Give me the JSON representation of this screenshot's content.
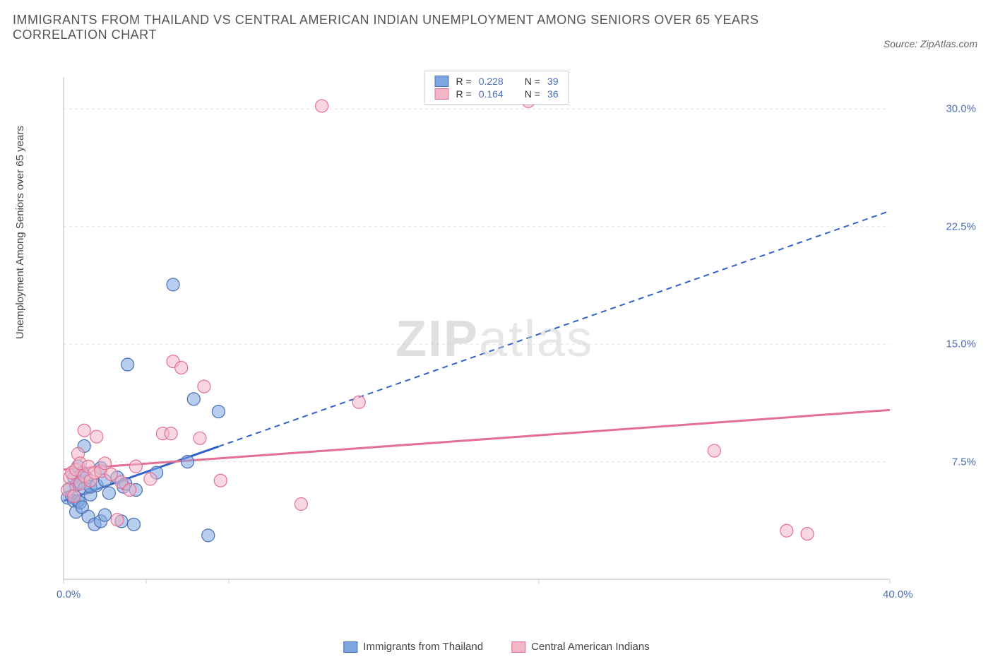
{
  "title": "IMMIGRANTS FROM THAILAND VS CENTRAL AMERICAN INDIAN UNEMPLOYMENT AMONG SENIORS OVER 65 YEARS CORRELATION CHART",
  "source": "Source: ZipAtlas.com",
  "yaxis_label": "Unemployment Among Seniors over 65 years",
  "watermark": {
    "bold": "ZIP",
    "rest": "atlas"
  },
  "chart": {
    "type": "scatter",
    "xlim": [
      0,
      40
    ],
    "ylim": [
      0,
      32
    ],
    "x_tick_positions": [
      0,
      4,
      8,
      23,
      40
    ],
    "y_tick_positions": [
      7.5,
      15,
      22.5,
      30
    ],
    "x_axis_labels": [
      {
        "value": 0,
        "text": "0.0%"
      },
      {
        "value": 40,
        "text": "40.0%"
      }
    ],
    "y_axis_labels": [
      {
        "value": 7.5,
        "text": "7.5%"
      },
      {
        "value": 15,
        "text": "15.0%"
      },
      {
        "value": 22.5,
        "text": "22.5%"
      },
      {
        "value": 30,
        "text": "30.0%"
      }
    ],
    "grid_color": "#e6e6e6",
    "axis_color": "#cfcfcf",
    "background_color": "#ffffff",
    "series": [
      {
        "id": "thailand",
        "label": "Immigrants from Thailand",
        "color_fill": "#7ea6e0",
        "color_stroke": "#4a6eb5",
        "marker_radius": 9,
        "marker_opacity": 0.55,
        "R": "0.228",
        "N": "39",
        "trend": {
          "style": "dashed",
          "color": "#2f62c9",
          "width": 2,
          "x1": 0,
          "y1": 5.0,
          "x2": 40,
          "y2": 23.5
        },
        "trend_solid_until_x": 7.5,
        "points": [
          [
            0.2,
            5.2
          ],
          [
            0.3,
            5.8
          ],
          [
            0.4,
            5.3
          ],
          [
            0.5,
            6.5
          ],
          [
            0.5,
            5.0
          ],
          [
            0.6,
            4.3
          ],
          [
            0.6,
            6.0
          ],
          [
            0.7,
            5.0
          ],
          [
            0.7,
            7.2
          ],
          [
            0.8,
            6.2
          ],
          [
            0.8,
            4.9
          ],
          [
            0.9,
            6.8
          ],
          [
            0.9,
            4.6
          ],
          [
            1.0,
            5.8
          ],
          [
            1.0,
            8.5
          ],
          [
            1.1,
            6.5
          ],
          [
            1.2,
            4.0
          ],
          [
            1.3,
            5.4
          ],
          [
            1.3,
            5.9
          ],
          [
            1.5,
            3.5
          ],
          [
            1.6,
            6.0
          ],
          [
            1.8,
            3.7
          ],
          [
            1.8,
            7.1
          ],
          [
            2.0,
            6.3
          ],
          [
            2.0,
            4.1
          ],
          [
            2.2,
            5.5
          ],
          [
            2.6,
            6.5
          ],
          [
            2.8,
            3.7
          ],
          [
            2.9,
            5.9
          ],
          [
            3.0,
            6.1
          ],
          [
            3.1,
            13.7
          ],
          [
            3.4,
            3.5
          ],
          [
            3.5,
            5.7
          ],
          [
            4.5,
            6.8
          ],
          [
            5.3,
            18.8
          ],
          [
            6.0,
            7.5
          ],
          [
            6.3,
            11.5
          ],
          [
            7.0,
            2.8
          ],
          [
            7.5,
            10.7
          ]
        ]
      },
      {
        "id": "cai",
        "label": "Central American Indians",
        "color_fill": "#f2b7c6",
        "color_stroke": "#e46f94",
        "marker_radius": 9,
        "marker_opacity": 0.55,
        "R": "0.164",
        "N": "36",
        "trend": {
          "style": "solid",
          "color": "#e46f94",
          "width": 3,
          "x1": 0,
          "y1": 7.0,
          "x2": 40,
          "y2": 10.8
        },
        "points": [
          [
            0.2,
            5.7
          ],
          [
            0.3,
            6.5
          ],
          [
            0.4,
            6.8
          ],
          [
            0.5,
            5.3
          ],
          [
            0.6,
            7.0
          ],
          [
            0.7,
            8.0
          ],
          [
            0.8,
            6.1
          ],
          [
            0.8,
            7.4
          ],
          [
            1.0,
            6.6
          ],
          [
            1.0,
            9.5
          ],
          [
            1.2,
            7.2
          ],
          [
            1.3,
            6.3
          ],
          [
            1.5,
            6.8
          ],
          [
            1.6,
            9.1
          ],
          [
            1.8,
            6.9
          ],
          [
            2.0,
            7.4
          ],
          [
            2.3,
            6.7
          ],
          [
            2.6,
            3.8
          ],
          [
            2.8,
            6.2
          ],
          [
            3.2,
            5.7
          ],
          [
            3.5,
            7.2
          ],
          [
            4.2,
            6.4
          ],
          [
            4.8,
            9.3
          ],
          [
            5.2,
            9.3
          ],
          [
            5.3,
            13.9
          ],
          [
            5.7,
            13.5
          ],
          [
            6.6,
            9.0
          ],
          [
            6.8,
            12.3
          ],
          [
            7.6,
            6.3
          ],
          [
            11.5,
            4.8
          ],
          [
            12.5,
            30.2
          ],
          [
            14.3,
            11.3
          ],
          [
            22.5,
            30.5
          ],
          [
            31.5,
            8.2
          ],
          [
            35.0,
            3.1
          ],
          [
            36.0,
            2.9
          ]
        ]
      }
    ]
  },
  "legend_top": [
    {
      "swatch_series": "thailand",
      "R_label": "R =",
      "N_label": "N ="
    },
    {
      "swatch_series": "cai",
      "R_label": "R =",
      "N_label": "N ="
    }
  ],
  "legend_bottom": [
    {
      "swatch_series": "thailand"
    },
    {
      "swatch_series": "cai"
    }
  ]
}
